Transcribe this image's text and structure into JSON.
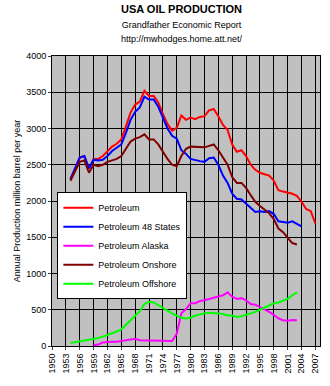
{
  "chart_data": {
    "type": "line",
    "title": "USA OIL PRODUCTION",
    "subtitle": [
      "Grandfather Economic Report",
      "http://mwhodges.home.att.net/"
    ],
    "y_label": "Annual Production million barrel per year",
    "x": [
      1954,
      1955,
      1956,
      1957,
      1958,
      1959,
      1960,
      1961,
      1962,
      1963,
      1964,
      1965,
      1966,
      1967,
      1968,
      1969,
      1970,
      1971,
      1972,
      1973,
      1974,
      1975,
      1976,
      1977,
      1978,
      1979,
      1980,
      1981,
      1982,
      1983,
      1984,
      1985,
      1986,
      1987,
      1988,
      1989,
      1990,
      1991,
      1992,
      1993,
      1994,
      1995,
      1996,
      1997,
      1998,
      1999,
      2000,
      2001,
      2002,
      2003,
      2004,
      2005,
      2006,
      2007
    ],
    "series": [
      {
        "name": "Petroleum",
        "color": "#ff0000",
        "values": [
          2300,
          2450,
          2600,
          2620,
          2450,
          2580,
          2580,
          2620,
          2680,
          2750,
          2790,
          2850,
          3030,
          3220,
          3330,
          3370,
          3520,
          3450,
          3450,
          3360,
          3200,
          3060,
          2970,
          3010,
          3180,
          3120,
          3150,
          3130,
          3160,
          3170,
          3250,
          3270,
          3170,
          3050,
          2980,
          2780,
          2680,
          2700,
          2620,
          2500,
          2430,
          2390,
          2370,
          2350,
          2280,
          2150,
          2130,
          2120,
          2100,
          2070,
          1990,
          1890,
          1860,
          1690
        ]
      },
      {
        "name": "Petroleum 48 States",
        "color": "#0000ff",
        "values": [
          2300,
          2450,
          2600,
          2620,
          2450,
          2570,
          2560,
          2570,
          2620,
          2690,
          2730,
          2780,
          2940,
          3120,
          3230,
          3290,
          3440,
          3400,
          3400,
          3300,
          3150,
          3000,
          2900,
          2860,
          2700,
          2650,
          2580,
          2560,
          2550,
          2540,
          2590,
          2600,
          2500,
          2350,
          2250,
          2100,
          2030,
          2020,
          1960,
          1900,
          1850,
          1860,
          1850,
          1860,
          1820,
          1720,
          1710,
          1700,
          1720,
          1690,
          1650,
          null,
          null,
          null
        ]
      },
      {
        "name": "Petroleum Alaska",
        "color": "#ff00ff",
        "values": [
          null,
          null,
          null,
          null,
          null,
          10,
          20,
          50,
          60,
          60,
          60,
          70,
          90,
          100,
          100,
          80,
          80,
          80,
          70,
          70,
          70,
          70,
          70,
          170,
          450,
          510,
          590,
          590,
          620,
          630,
          650,
          660,
          680,
          700,
          740,
          680,
          650,
          660,
          630,
          580,
          570,
          540,
          510,
          470,
          430,
          380,
          355,
          350,
          360,
          355,
          null,
          null,
          null,
          null
        ]
      },
      {
        "name": "Petroleum Onshore",
        "color": "#800000",
        "values": [
          2280,
          2420,
          2540,
          2560,
          2390,
          2500,
          2480,
          2500,
          2540,
          2560,
          2580,
          2620,
          2720,
          2820,
          2860,
          2880,
          2920,
          2850,
          2850,
          2780,
          2680,
          2580,
          2500,
          2480,
          2620,
          2720,
          2750,
          2750,
          2750,
          2740,
          2760,
          2780,
          2700,
          2600,
          2500,
          2330,
          2250,
          2250,
          2180,
          2080,
          1990,
          1930,
          1880,
          1830,
          1750,
          1620,
          1570,
          1500,
          1420,
          1400,
          null,
          null,
          null,
          null
        ]
      },
      {
        "name": "Petroleum Offshore",
        "color": "#00ff00",
        "values": [
          40,
          50,
          60,
          75,
          80,
          90,
          110,
          130,
          150,
          180,
          200,
          230,
          290,
          350,
          420,
          480,
          580,
          610,
          600,
          560,
          520,
          480,
          450,
          420,
          390,
          380,
          390,
          420,
          440,
          450,
          460,
          460,
          450,
          440,
          420,
          420,
          400,
          410,
          430,
          440,
          470,
          500,
          530,
          570,
          590,
          600,
          620,
          650,
          700,
          740,
          null,
          null,
          null,
          null
        ]
      }
    ],
    "xlim": [
      1950,
      2008
    ],
    "xticks": [
      1950,
      1953,
      1956,
      1959,
      1962,
      1965,
      1968,
      1971,
      1974,
      1977,
      1980,
      1983,
      1986,
      1989,
      1992,
      1995,
      1998,
      2001,
      2004,
      2007
    ],
    "ylim": [
      0,
      4000
    ],
    "yticks": [
      0,
      500,
      1000,
      1500,
      2000,
      2500,
      3000,
      3500,
      4000
    ],
    "grid": true,
    "legend": "left"
  }
}
